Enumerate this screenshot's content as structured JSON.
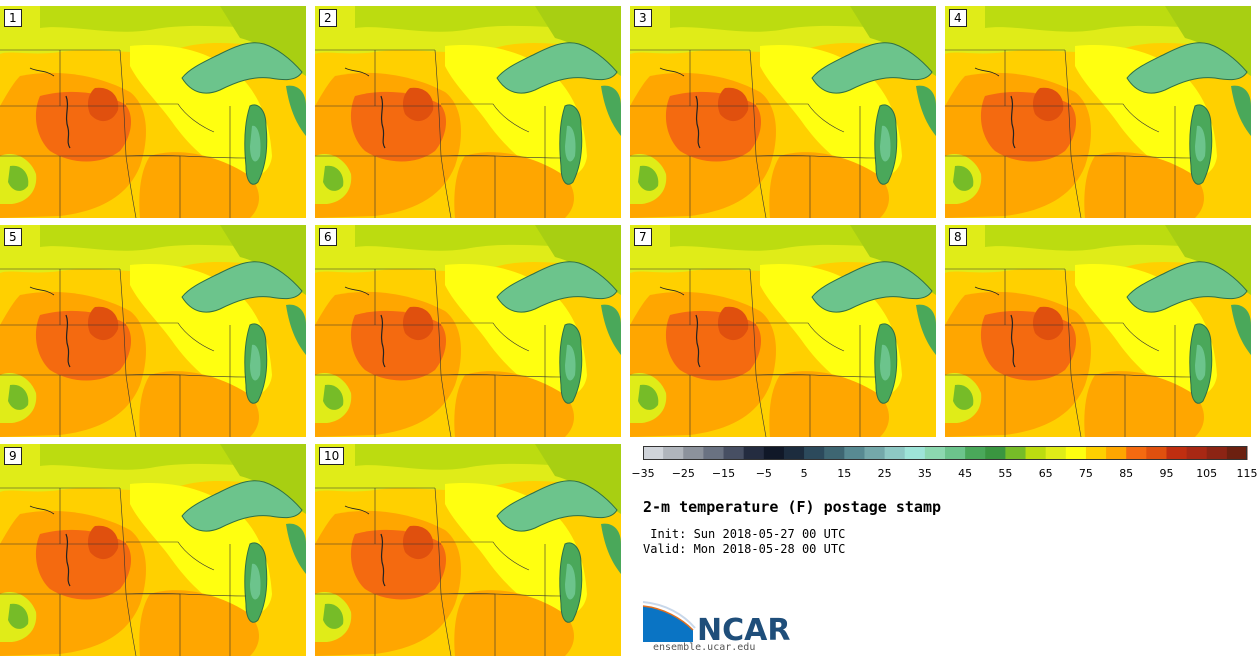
{
  "panels": [
    {
      "label": "1"
    },
    {
      "label": "2"
    },
    {
      "label": "3"
    },
    {
      "label": "4"
    },
    {
      "label": "5"
    },
    {
      "label": "6"
    },
    {
      "label": "7"
    },
    {
      "label": "8"
    },
    {
      "label": "9"
    },
    {
      "label": "10"
    }
  ],
  "colorbar": {
    "tick_labels": [
      "−35",
      "−25",
      "−15",
      "−5",
      "5",
      "15",
      "25",
      "35",
      "45",
      "55",
      "65",
      "75",
      "85",
      "95",
      "105",
      "115"
    ],
    "colors": [
      "#d0d4da",
      "#b0b5bc",
      "#8c929c",
      "#6a7282",
      "#474f63",
      "#242c40",
      "#101828",
      "#1c2c3e",
      "#2c4a5c",
      "#3e6672",
      "#588a92",
      "#74a8aa",
      "#8ec8c4",
      "#9ee4d8",
      "#8cd8b0",
      "#6cc48c",
      "#4aa85a",
      "#3a9640",
      "#76bc28",
      "#bcdc10",
      "#e0ec18",
      "#ffff10",
      "#ffd000",
      "#ffa600",
      "#f46a10",
      "#e0500e",
      "#c02e10",
      "#a82814",
      "#8c2414",
      "#6c2010"
    ]
  },
  "title": "2-m temperature (F) postage stamp",
  "init_line": " Init: Sun 2018-05-27 00 UTC",
  "valid_line": "Valid: Mon 2018-05-28 00 UTC",
  "logo_text": "NCAR",
  "url": "ensemble.ucar.edu"
}
